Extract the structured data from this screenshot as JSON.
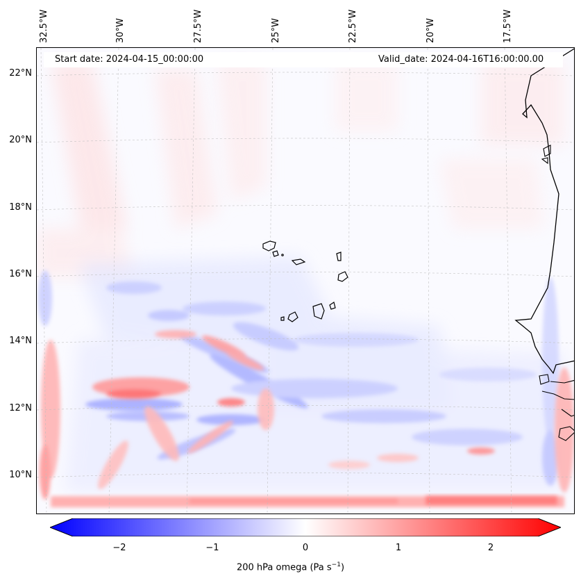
{
  "map": {
    "header_left": "Start date: 2024-04-15_00:00:00",
    "header_right": "Valid_date: 2024-04-16T16:00:00.00",
    "lon_labels": [
      "32.5°W",
      "30°W",
      "27.5°W",
      "25°W",
      "22.5°W",
      "20°W",
      "17.5°W"
    ],
    "lat_labels": [
      "22°N",
      "20°N",
      "18°N",
      "16°N",
      "14°N",
      "12°N",
      "10°N"
    ],
    "colorbar": {
      "ticks": [
        "−2",
        "−1",
        "0",
        "1",
        "2"
      ],
      "label": "200 hPa omega (Pa s",
      "label_sup": "−1",
      "label_end": ")",
      "range": [
        -2.6,
        2.6
      ],
      "colormap": "bwr"
    },
    "colors": {
      "negative": "#0000ff",
      "positive": "#ff0000",
      "neutral": "#ffffff",
      "coast": "#000000"
    }
  }
}
